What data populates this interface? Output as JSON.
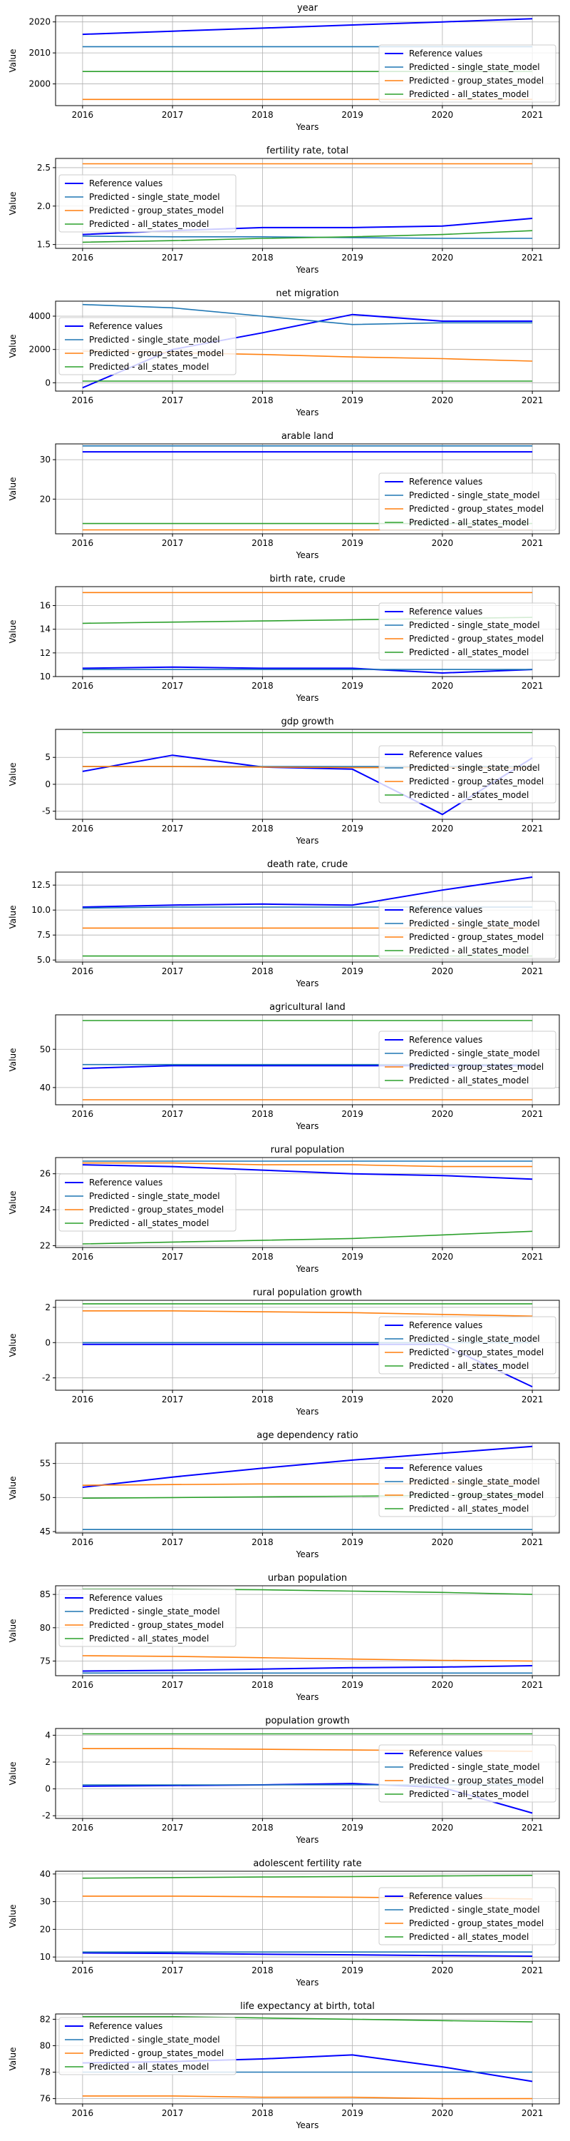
{
  "common": {
    "xlabel": "Years",
    "ylabel": "Value",
    "x": [
      2016,
      2017,
      2018,
      2019,
      2020,
      2021
    ],
    "series_names": [
      "Reference values",
      "Predicted - single_state_model",
      "Predicted - group_states_model",
      "Predicted - all_states_model"
    ],
    "colors": {
      "reference": "#0000ff",
      "single_state": "#1f77b4",
      "group_states": "#ff7f0e",
      "all_states": "#2ca02c"
    }
  },
  "chart_data": [
    {
      "type": "line",
      "title": "year",
      "xlabel": "Years",
      "ylabel": "Value",
      "x": [
        2016,
        2017,
        2018,
        2019,
        2020,
        2021
      ],
      "ylim": [
        1993,
        2022
      ],
      "yticks": [
        2000,
        2010,
        2020
      ],
      "grid": true,
      "legend_placement": "lower-right",
      "series": [
        {
          "name": "Reference values",
          "values": [
            2016,
            2017,
            2018,
            2019,
            2020,
            2021
          ]
        },
        {
          "name": "Predicted - single_state_model",
          "values": [
            2012,
            2012,
            2012,
            2012,
            2012,
            2012
          ]
        },
        {
          "name": "Predicted - group_states_model",
          "values": [
            1995,
            1995,
            1995,
            1995,
            1995,
            1995
          ]
        },
        {
          "name": "Predicted - all_states_model",
          "values": [
            2004,
            2004,
            2004,
            2004,
            2004,
            2004
          ]
        }
      ]
    },
    {
      "type": "line",
      "title": "fertility rate, total",
      "xlabel": "Years",
      "ylabel": "Value",
      "x": [
        2016,
        2017,
        2018,
        2019,
        2020,
        2021
      ],
      "ylim": [
        1.45,
        2.62
      ],
      "yticks": [
        1.5,
        2.0,
        2.5
      ],
      "yticklabels": [
        "1.5",
        "2.0",
        "2.5"
      ],
      "grid": true,
      "legend_placement": "center-left",
      "series": [
        {
          "name": "Reference values",
          "values": [
            1.63,
            1.68,
            1.72,
            1.72,
            1.74,
            1.84
          ]
        },
        {
          "name": "Predicted - single_state_model",
          "values": [
            1.61,
            1.6,
            1.6,
            1.59,
            1.58,
            1.58
          ]
        },
        {
          "name": "Predicted - group_states_model",
          "values": [
            2.55,
            2.55,
            2.55,
            2.55,
            2.55,
            2.55
          ]
        },
        {
          "name": "Predicted - all_states_model",
          "values": [
            1.53,
            1.55,
            1.58,
            1.6,
            1.63,
            1.68
          ]
        }
      ]
    },
    {
      "type": "line",
      "title": "net migration",
      "xlabel": "Years",
      "ylabel": "Value",
      "x": [
        2016,
        2017,
        2018,
        2019,
        2020,
        2021
      ],
      "ylim": [
        -500,
        4900
      ],
      "yticks": [
        0,
        2000,
        4000
      ],
      "grid": true,
      "legend_placement": "center-left",
      "series": [
        {
          "name": "Reference values",
          "values": [
            -300,
            2000,
            3000,
            4100,
            3700,
            3700
          ]
        },
        {
          "name": "Predicted - single_state_model",
          "values": [
            4700,
            4500,
            4000,
            3500,
            3600,
            3600
          ]
        },
        {
          "name": "Predicted - group_states_model",
          "values": [
            1900,
            1800,
            1700,
            1550,
            1450,
            1300
          ]
        },
        {
          "name": "Predicted - all_states_model",
          "values": [
            100,
            100,
            100,
            100,
            100,
            100
          ]
        }
      ]
    },
    {
      "type": "line",
      "title": "arable land",
      "xlabel": "Years",
      "ylabel": "Value",
      "x": [
        2016,
        2017,
        2018,
        2019,
        2020,
        2021
      ],
      "ylim": [
        11.2,
        34
      ],
      "yticks": [
        20,
        30
      ],
      "grid": true,
      "legend_placement": "lower-right",
      "series": [
        {
          "name": "Reference values",
          "values": [
            32,
            32,
            32,
            32,
            32,
            32
          ]
        },
        {
          "name": "Predicted - single_state_model",
          "values": [
            33.5,
            33.5,
            33.5,
            33.5,
            33.5,
            33.5
          ]
        },
        {
          "name": "Predicted - group_states_model",
          "values": [
            12.2,
            12.2,
            12.2,
            12.2,
            12.2,
            12.2
          ]
        },
        {
          "name": "Predicted - all_states_model",
          "values": [
            13.8,
            13.8,
            13.8,
            13.8,
            13.8,
            13.8
          ]
        }
      ]
    },
    {
      "type": "line",
      "title": "birth rate, crude",
      "xlabel": "Years",
      "ylabel": "Value",
      "x": [
        2016,
        2017,
        2018,
        2019,
        2020,
        2021
      ],
      "ylim": [
        10,
        17.6
      ],
      "yticks": [
        10,
        12,
        14,
        16
      ],
      "grid": true,
      "legend_placement": "right",
      "series": [
        {
          "name": "Reference values",
          "values": [
            10.7,
            10.8,
            10.7,
            10.7,
            10.3,
            10.6
          ]
        },
        {
          "name": "Predicted - single_state_model",
          "values": [
            10.6,
            10.6,
            10.6,
            10.6,
            10.6,
            10.6
          ]
        },
        {
          "name": "Predicted - group_states_model",
          "values": [
            17.1,
            17.1,
            17.1,
            17.1,
            17.1,
            17.1
          ]
        },
        {
          "name": "Predicted - all_states_model",
          "values": [
            14.5,
            14.6,
            14.7,
            14.8,
            14.9,
            15.0
          ]
        }
      ]
    },
    {
      "type": "line",
      "title": "gdp growth",
      "xlabel": "Years",
      "ylabel": "Value",
      "x": [
        2016,
        2017,
        2018,
        2019,
        2020,
        2021
      ],
      "ylim": [
        -6.5,
        10.2
      ],
      "yticks": [
        -5,
        0,
        5
      ],
      "grid": true,
      "legend_placement": "right",
      "series": [
        {
          "name": "Reference values",
          "values": [
            2.4,
            5.4,
            3.2,
            2.8,
            -5.6,
            4.9
          ]
        },
        {
          "name": "Predicted - single_state_model",
          "values": [
            3.3,
            3.3,
            3.3,
            3.3,
            3.3,
            3.3
          ]
        },
        {
          "name": "Predicted - group_states_model",
          "values": [
            3.3,
            3.3,
            3.2,
            3.1,
            3.1,
            3.0
          ]
        },
        {
          "name": "Predicted - all_states_model",
          "values": [
            9.6,
            9.6,
            9.6,
            9.6,
            9.6,
            9.6
          ]
        }
      ]
    },
    {
      "type": "line",
      "title": "death rate, crude",
      "xlabel": "Years",
      "ylabel": "Value",
      "x": [
        2016,
        2017,
        2018,
        2019,
        2020,
        2021
      ],
      "ylim": [
        4.8,
        13.8
      ],
      "yticks": [
        5.0,
        7.5,
        10.0,
        12.5
      ],
      "yticklabels": [
        "5.0",
        "7.5",
        "10.0",
        "12.5"
      ],
      "grid": true,
      "legend_placement": "lower-right",
      "series": [
        {
          "name": "Reference values",
          "values": [
            10.3,
            10.5,
            10.6,
            10.5,
            12.0,
            13.3
          ]
        },
        {
          "name": "Predicted - single_state_model",
          "values": [
            10.2,
            10.3,
            10.3,
            10.3,
            10.3,
            10.3
          ]
        },
        {
          "name": "Predicted - group_states_model",
          "values": [
            8.2,
            8.2,
            8.2,
            8.2,
            8.2,
            8.2
          ]
        },
        {
          "name": "Predicted - all_states_model",
          "values": [
            5.4,
            5.4,
            5.4,
            5.4,
            5.4,
            5.4
          ]
        }
      ]
    },
    {
      "type": "line",
      "title": "agricultural land",
      "xlabel": "Years",
      "ylabel": "Value",
      "x": [
        2016,
        2017,
        2018,
        2019,
        2020,
        2021
      ],
      "ylim": [
        35.5,
        59
      ],
      "yticks": [
        40,
        50
      ],
      "grid": true,
      "legend_placement": "right",
      "series": [
        {
          "name": "Reference values",
          "values": [
            45,
            45.7,
            45.7,
            45.7,
            45.7,
            45.7
          ]
        },
        {
          "name": "Predicted - single_state_model",
          "values": [
            46,
            46,
            46,
            46,
            46,
            46
          ]
        },
        {
          "name": "Predicted - group_states_model",
          "values": [
            36.8,
            36.8,
            36.8,
            36.8,
            36.8,
            36.8
          ]
        },
        {
          "name": "Predicted - all_states_model",
          "values": [
            57.5,
            57.5,
            57.5,
            57.5,
            57.5,
            57.5
          ]
        }
      ]
    },
    {
      "type": "line",
      "title": "rural population",
      "xlabel": "Years",
      "ylabel": "Value",
      "x": [
        2016,
        2017,
        2018,
        2019,
        2020,
        2021
      ],
      "ylim": [
        21.9,
        26.9
      ],
      "yticks": [
        22,
        24,
        26
      ],
      "grid": true,
      "legend_placement": "center-left",
      "series": [
        {
          "name": "Reference values",
          "values": [
            26.5,
            26.4,
            26.2,
            26.0,
            25.9,
            25.7
          ]
        },
        {
          "name": "Predicted - single_state_model",
          "values": [
            26.7,
            26.7,
            26.7,
            26.7,
            26.7,
            26.7
          ]
        },
        {
          "name": "Predicted - group_states_model",
          "values": [
            26.6,
            26.6,
            26.5,
            26.5,
            26.4,
            26.4
          ]
        },
        {
          "name": "Predicted - all_states_model",
          "values": [
            22.1,
            22.2,
            22.3,
            22.4,
            22.6,
            22.8
          ]
        }
      ]
    },
    {
      "type": "line",
      "title": "rural population growth",
      "xlabel": "Years",
      "ylabel": "Value",
      "x": [
        2016,
        2017,
        2018,
        2019,
        2020,
        2021
      ],
      "ylim": [
        -2.7,
        2.4
      ],
      "yticks": [
        -2,
        0,
        2
      ],
      "grid": true,
      "legend_placement": "right",
      "series": [
        {
          "name": "Reference values",
          "values": [
            -0.1,
            -0.1,
            -0.1,
            -0.1,
            -0.1,
            -2.5
          ]
        },
        {
          "name": "Predicted - single_state_model",
          "values": [
            0.0,
            0.0,
            0.0,
            0.0,
            0.0,
            0.0
          ]
        },
        {
          "name": "Predicted - group_states_model",
          "values": [
            1.8,
            1.8,
            1.75,
            1.7,
            1.6,
            1.5
          ]
        },
        {
          "name": "Predicted - all_states_model",
          "values": [
            2.2,
            2.2,
            2.2,
            2.2,
            2.2,
            2.2
          ]
        }
      ]
    },
    {
      "type": "line",
      "title": "age dependency ratio",
      "xlabel": "Years",
      "ylabel": "Value",
      "x": [
        2016,
        2017,
        2018,
        2019,
        2020,
        2021
      ],
      "ylim": [
        44.8,
        58
      ],
      "yticks": [
        45,
        50,
        55
      ],
      "grid": true,
      "legend_placement": "right",
      "series": [
        {
          "name": "Reference values",
          "values": [
            51.5,
            53.0,
            54.3,
            55.5,
            56.5,
            57.5
          ]
        },
        {
          "name": "Predicted - single_state_model",
          "values": [
            45.3,
            45.3,
            45.3,
            45.3,
            45.3,
            45.3
          ]
        },
        {
          "name": "Predicted - group_states_model",
          "values": [
            51.8,
            51.9,
            52.0,
            52.0,
            52.0,
            52.0
          ]
        },
        {
          "name": "Predicted - all_states_model",
          "values": [
            49.9,
            50.0,
            50.1,
            50.2,
            50.3,
            50.4
          ]
        }
      ]
    },
    {
      "type": "line",
      "title": "urban population",
      "xlabel": "Years",
      "ylabel": "Value",
      "x": [
        2016,
        2017,
        2018,
        2019,
        2020,
        2021
      ],
      "ylim": [
        72.8,
        86.3
      ],
      "yticks": [
        75,
        80,
        85
      ],
      "grid": true,
      "legend_placement": "top-left",
      "series": [
        {
          "name": "Reference values",
          "values": [
            73.5,
            73.6,
            73.8,
            74.0,
            74.1,
            74.3
          ]
        },
        {
          "name": "Predicted - single_state_model",
          "values": [
            73.2,
            73.2,
            73.2,
            73.2,
            73.2,
            73.2
          ]
        },
        {
          "name": "Predicted - group_states_model",
          "values": [
            75.8,
            75.7,
            75.5,
            75.3,
            75.1,
            75.0
          ]
        },
        {
          "name": "Predicted - all_states_model",
          "values": [
            85.8,
            85.8,
            85.7,
            85.5,
            85.3,
            85.0
          ]
        }
      ]
    },
    {
      "type": "line",
      "title": "population growth",
      "xlabel": "Years",
      "ylabel": "Value",
      "x": [
        2016,
        2017,
        2018,
        2019,
        2020,
        2021
      ],
      "ylim": [
        -2.2,
        4.5
      ],
      "yticks": [
        -2,
        0,
        2,
        4
      ],
      "grid": true,
      "legend_placement": "right",
      "series": [
        {
          "name": "Reference values",
          "values": [
            0.2,
            0.25,
            0.3,
            0.4,
            0.1,
            -1.8
          ]
        },
        {
          "name": "Predicted - single_state_model",
          "values": [
            0.3,
            0.3,
            0.3,
            0.3,
            0.3,
            0.3
          ]
        },
        {
          "name": "Predicted - group_states_model",
          "values": [
            3.0,
            3.0,
            2.95,
            2.9,
            2.85,
            2.8
          ]
        },
        {
          "name": "Predicted - all_states_model",
          "values": [
            4.1,
            4.1,
            4.1,
            4.1,
            4.1,
            4.1
          ]
        }
      ]
    },
    {
      "type": "line",
      "title": "adolescent fertility rate",
      "xlabel": "Years",
      "ylabel": "Value",
      "x": [
        2016,
        2017,
        2018,
        2019,
        2020,
        2021
      ],
      "ylim": [
        8.5,
        41
      ],
      "yticks": [
        10,
        20,
        30,
        40
      ],
      "grid": true,
      "legend_placement": "right",
      "series": [
        {
          "name": "Reference values",
          "values": [
            11.5,
            11.3,
            11.0,
            10.8,
            10.5,
            10.3
          ]
        },
        {
          "name": "Predicted - single_state_model",
          "values": [
            11.8,
            11.8,
            11.8,
            11.8,
            11.8,
            11.8
          ]
        },
        {
          "name": "Predicted - group_states_model",
          "values": [
            32.0,
            32.0,
            31.8,
            31.6,
            31.3,
            31.0
          ]
        },
        {
          "name": "Predicted - all_states_model",
          "values": [
            38.5,
            38.7,
            38.9,
            39.1,
            39.3,
            39.5
          ]
        }
      ]
    },
    {
      "type": "line",
      "title": "life expectancy at birth, total",
      "xlabel": "Years",
      "ylabel": "Value",
      "x": [
        2016,
        2017,
        2018,
        2019,
        2020,
        2021
      ],
      "ylim": [
        75.6,
        82.4
      ],
      "yticks": [
        76,
        78,
        80,
        82
      ],
      "grid": true,
      "legend_placement": "top-left",
      "series": [
        {
          "name": "Reference values",
          "values": [
            78.7,
            78.8,
            79.0,
            79.3,
            78.4,
            77.3
          ]
        },
        {
          "name": "Predicted - single_state_model",
          "values": [
            78.0,
            78.0,
            78.0,
            78.0,
            78.0,
            78.0
          ]
        },
        {
          "name": "Predicted - group_states_model",
          "values": [
            76.2,
            76.2,
            76.1,
            76.1,
            76.0,
            76.0
          ]
        },
        {
          "name": "Predicted - all_states_model",
          "values": [
            82.2,
            82.2,
            82.1,
            82.0,
            81.9,
            81.8
          ]
        }
      ]
    }
  ]
}
